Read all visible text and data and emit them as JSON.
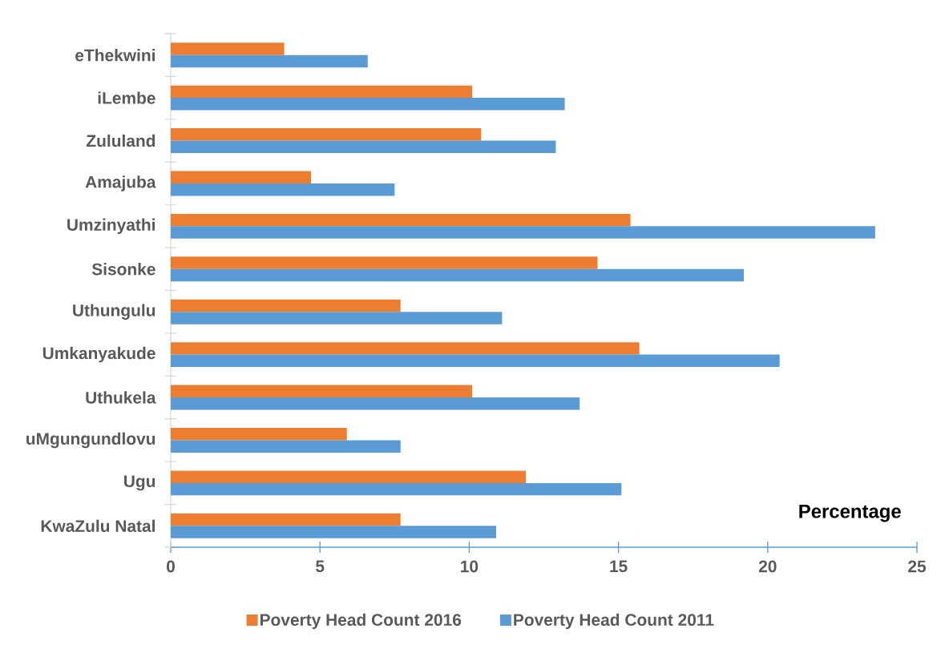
{
  "chart_data": {
    "type": "bar",
    "orientation": "horizontal",
    "xlabel": "Percentage",
    "categories": [
      "eThekwini",
      "iLembe",
      "Zululand",
      "Amajuba",
      "Umzinyathi",
      "Sisonke",
      "Uthungulu",
      "Umkanyakude",
      "Uthukela",
      "uMgungundlovu",
      "Ugu",
      "KwaZulu Natal"
    ],
    "series": [
      {
        "name": "Poverty Head Count 2016",
        "color": "#ed7d31",
        "values": [
          3.8,
          10.1,
          10.4,
          4.7,
          15.4,
          14.3,
          7.7,
          15.7,
          10.1,
          5.9,
          11.9,
          7.7
        ]
      },
      {
        "name": "Poverty Head Count 2011",
        "color": "#5b9bd5",
        "values": [
          6.6,
          13.2,
          12.9,
          7.5,
          23.6,
          19.2,
          11.1,
          20.4,
          13.7,
          7.7,
          15.1,
          10.9
        ]
      }
    ],
    "xlim": [
      0,
      25
    ],
    "xticks": [
      0,
      5,
      10,
      15,
      20,
      25
    ],
    "legend": "bottom"
  }
}
